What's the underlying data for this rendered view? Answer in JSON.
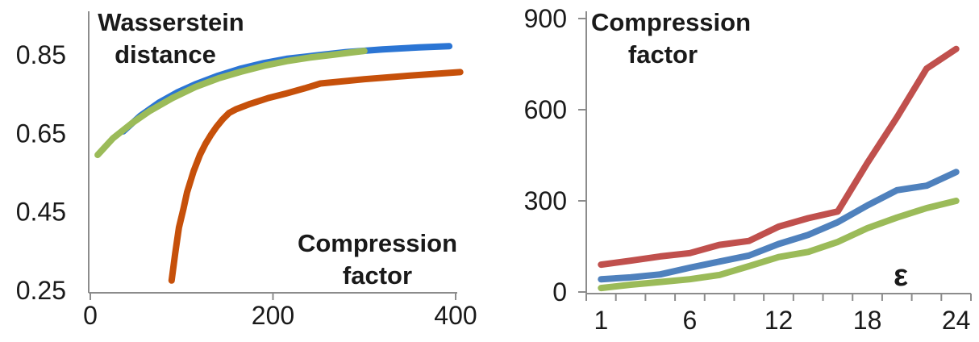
{
  "figure": {
    "background": "#ffffff",
    "axis_color": "#8c8c8c",
    "text_color": "#1a1a1a"
  },
  "chart_data": [
    {
      "type": "line",
      "id": "wasserstein-vs-compression",
      "title_lines": [
        "Wasserstein",
        "distance"
      ],
      "inner_xlabel_lines": [
        "Compression",
        "factor"
      ],
      "xlabel": "Compression factor",
      "ylabel": "Wasserstein distance",
      "xlim": [
        0,
        400
      ],
      "ylim": [
        0.25,
        0.85
      ],
      "xticks": [
        0,
        200,
        400
      ],
      "xtick_labels": [
        "0",
        "200",
        "400"
      ],
      "yticks": [
        0.25,
        0.45,
        0.65,
        0.85
      ],
      "ytick_labels": [
        "0.25",
        "0.45",
        "0.65",
        "0.85"
      ],
      "grid": false,
      "legend": null,
      "series": [
        {
          "name": "blue",
          "color": "#2B75D4",
          "points": [
            [
              36,
              0.655
            ],
            [
              55,
              0.695
            ],
            [
              75,
              0.728
            ],
            [
              95,
              0.754
            ],
            [
              115,
              0.775
            ],
            [
              140,
              0.797
            ],
            [
              165,
              0.815
            ],
            [
              190,
              0.829
            ],
            [
              215,
              0.84
            ],
            [
              245,
              0.848
            ],
            [
              280,
              0.857
            ],
            [
              320,
              0.864
            ],
            [
              360,
              0.869
            ],
            [
              393,
              0.872
            ]
          ]
        },
        {
          "name": "green",
          "color": "#9BBB59",
          "points": [
            [
              8,
              0.595
            ],
            [
              25,
              0.638
            ],
            [
              45,
              0.675
            ],
            [
              65,
              0.707
            ],
            [
              90,
              0.74
            ],
            [
              115,
              0.768
            ],
            [
              140,
              0.79
            ],
            [
              165,
              0.807
            ],
            [
              190,
              0.822
            ],
            [
              215,
              0.834
            ],
            [
              240,
              0.843
            ],
            [
              265,
              0.85
            ],
            [
              285,
              0.856
            ],
            [
              300,
              0.86
            ]
          ]
        },
        {
          "name": "orange-red",
          "color": "#C6500A",
          "points": [
            [
              89,
              0.275
            ],
            [
              93,
              0.345
            ],
            [
              97,
              0.41
            ],
            [
              102,
              0.458
            ],
            [
              106,
              0.5
            ],
            [
              113,
              0.553
            ],
            [
              120,
              0.595
            ],
            [
              126,
              0.623
            ],
            [
              132,
              0.646
            ],
            [
              138,
              0.666
            ],
            [
              145,
              0.686
            ],
            [
              152,
              0.702
            ],
            [
              160,
              0.712
            ],
            [
              175,
              0.725
            ],
            [
              195,
              0.74
            ],
            [
              215,
              0.752
            ],
            [
              235,
              0.765
            ],
            [
              252,
              0.777
            ],
            [
              300,
              0.788
            ],
            [
              350,
              0.797
            ],
            [
              405,
              0.806
            ]
          ]
        }
      ]
    },
    {
      "type": "line",
      "id": "compression-vs-epsilon",
      "title_lines": [
        "Compression",
        "factor"
      ],
      "xlabel": "ε",
      "ylabel": "Compression factor",
      "categories": [
        1,
        2,
        4,
        6,
        8,
        10,
        12,
        14,
        16,
        18,
        20,
        22,
        24
      ],
      "labeled_category_indices": [
        0,
        3,
        6,
        9,
        12
      ],
      "xtick_labels": [
        "1",
        "6",
        "12",
        "18",
        "24"
      ],
      "ylim": [
        0,
        900
      ],
      "yticks": [
        0,
        300,
        600,
        900
      ],
      "ytick_labels": [
        "0",
        "300",
        "600",
        "900"
      ],
      "grid": false,
      "legend": null,
      "series": [
        {
          "name": "green",
          "color": "#9BBB59",
          "values": [
            13,
            24,
            33,
            42,
            56,
            85,
            115,
            132,
            165,
            210,
            245,
            276,
            300
          ]
        },
        {
          "name": "blue",
          "color": "#4F81BD",
          "values": [
            42,
            48,
            58,
            80,
            100,
            120,
            158,
            188,
            230,
            285,
            335,
            350,
            395
          ]
        },
        {
          "name": "red",
          "color": "#C0504D",
          "values": [
            90,
            103,
            117,
            128,
            155,
            168,
            215,
            243,
            265,
            425,
            575,
            735,
            800
          ]
        }
      ]
    }
  ]
}
